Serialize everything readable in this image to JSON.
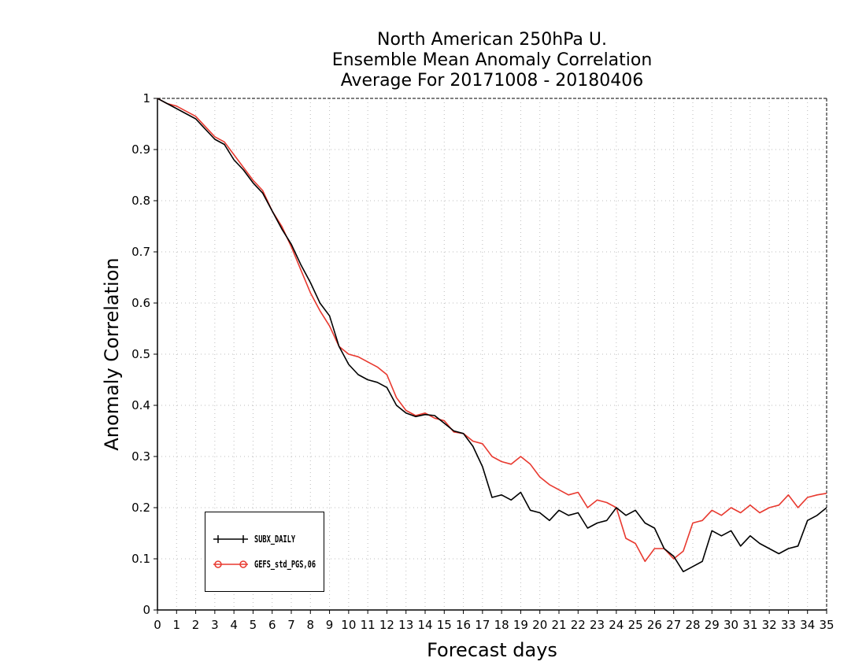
{
  "chart_data": {
    "type": "line",
    "title": [
      "North American 250hPa U.",
      "Ensemble Mean Anomaly Correlation",
      "Average For 20171008 - 20180406"
    ],
    "xlabel": "Forecast days",
    "ylabel": "Anomaly Correlation",
    "xlim": [
      0,
      35
    ],
    "ylim": [
      0,
      1
    ],
    "xticks": [
      "0",
      "1",
      "2",
      "3",
      "4",
      "5",
      "6",
      "7",
      "8",
      "9",
      "10",
      "11",
      "12",
      "13",
      "14",
      "15",
      "16",
      "17",
      "18",
      "19",
      "20",
      "21",
      "22",
      "23",
      "24",
      "25",
      "26",
      "27",
      "28",
      "29",
      "30",
      "31",
      "32",
      "33",
      "34",
      "35"
    ],
    "yticks": [
      "0",
      "0.1",
      "0.2",
      "0.3",
      "0.4",
      "0.5",
      "0.6",
      "0.7",
      "0.8",
      "0.9",
      "1"
    ],
    "grid": true,
    "legend_position": "bottom-left",
    "series": [
      {
        "name": "SUBX_DAILY",
        "color": "#000000",
        "marker": "plus",
        "x": [
          0,
          0.5,
          1,
          1.5,
          2,
          2.5,
          3,
          3.5,
          4,
          4.5,
          5,
          5.5,
          6,
          6.5,
          7,
          7.5,
          8,
          8.5,
          9,
          9.5,
          10,
          10.5,
          11,
          11.5,
          12,
          12.5,
          13,
          13.5,
          14,
          14.5,
          15,
          15.5,
          16,
          16.5,
          17,
          17.5,
          18,
          18.5,
          19,
          19.5,
          20,
          20.5,
          21,
          21.5,
          22,
          22.5,
          23,
          23.5,
          24,
          24.5,
          25,
          25.5,
          26,
          26.5,
          27,
          27.5,
          28,
          28.5,
          29,
          29.5,
          30,
          30.5,
          31,
          31.5,
          32,
          32.5,
          33,
          33.5,
          34,
          34.5,
          35
        ],
        "y": [
          1.0,
          0.99,
          0.98,
          0.97,
          0.96,
          0.94,
          0.92,
          0.91,
          0.88,
          0.86,
          0.835,
          0.815,
          0.78,
          0.745,
          0.715,
          0.675,
          0.64,
          0.6,
          0.575,
          0.515,
          0.48,
          0.46,
          0.45,
          0.445,
          0.435,
          0.4,
          0.385,
          0.378,
          0.382,
          0.38,
          0.365,
          0.35,
          0.345,
          0.32,
          0.28,
          0.22,
          0.225,
          0.215,
          0.23,
          0.195,
          0.19,
          0.175,
          0.195,
          0.185,
          0.19,
          0.16,
          0.17,
          0.175,
          0.2,
          0.185,
          0.195,
          0.17,
          0.16,
          0.12,
          0.105,
          0.075,
          0.085,
          0.095,
          0.155,
          0.145,
          0.155,
          0.125,
          0.145,
          0.13,
          0.12,
          0.11,
          0.12,
          0.125,
          0.175,
          0.185,
          0.2
        ]
      },
      {
        "name": "GEFS_std_PGS,06",
        "color": "#e8392f",
        "marker": "circle",
        "x": [
          0,
          0.5,
          1,
          1.5,
          2,
          2.5,
          3,
          3.5,
          4,
          4.5,
          5,
          5.5,
          6,
          6.5,
          7,
          7.5,
          8,
          8.5,
          9,
          9.5,
          10,
          10.5,
          11,
          11.5,
          12,
          12.5,
          13,
          13.5,
          14,
          14.5,
          15,
          15.5,
          16,
          16.5,
          17,
          17.5,
          18,
          18.5,
          19,
          19.5,
          20,
          20.5,
          21,
          21.5,
          22,
          22.5,
          23,
          23.5,
          24,
          24.5,
          25,
          25.5,
          26,
          26.5,
          27,
          27.5,
          28,
          28.5,
          29,
          29.5,
          30,
          30.5,
          31,
          31.5,
          32,
          32.5,
          33,
          33.5,
          34,
          34.5,
          35
        ],
        "y": [
          1.0,
          0.99,
          0.985,
          0.975,
          0.965,
          0.945,
          0.925,
          0.915,
          0.89,
          0.865,
          0.84,
          0.82,
          0.78,
          0.75,
          0.71,
          0.665,
          0.62,
          0.585,
          0.555,
          0.515,
          0.5,
          0.495,
          0.485,
          0.475,
          0.46,
          0.415,
          0.39,
          0.38,
          0.385,
          0.375,
          0.37,
          0.348,
          0.345,
          0.33,
          0.325,
          0.3,
          0.29,
          0.285,
          0.3,
          0.285,
          0.26,
          0.245,
          0.235,
          0.225,
          0.23,
          0.2,
          0.215,
          0.21,
          0.2,
          0.14,
          0.13,
          0.095,
          0.12,
          0.12,
          0.1,
          0.115,
          0.17,
          0.175,
          0.195,
          0.185,
          0.2,
          0.19,
          0.205,
          0.19,
          0.2,
          0.205,
          0.225,
          0.2,
          0.22,
          0.225,
          0.228
        ]
      }
    ]
  }
}
